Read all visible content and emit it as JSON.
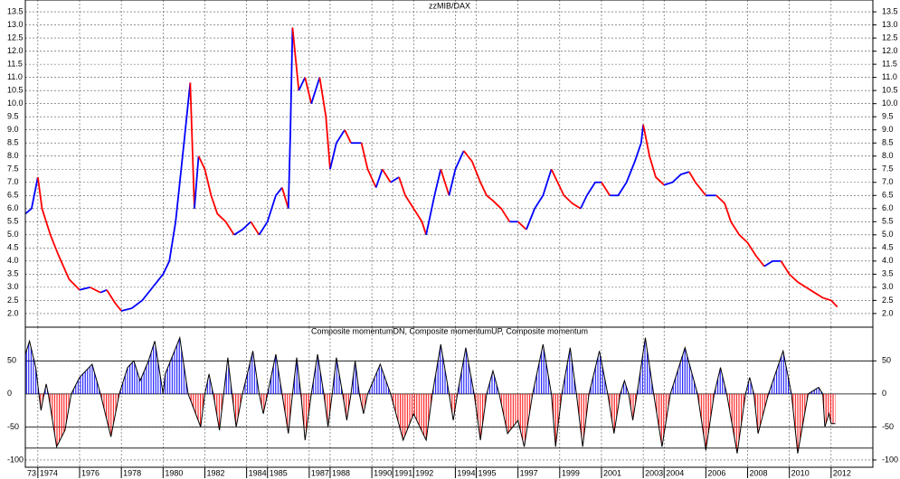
{
  "chart_data": [
    {
      "type": "line",
      "title": "zzMIB/DAX",
      "up_color": "#0000ff",
      "down_color": "#ff0000",
      "xlim": [
        1973.4,
        2014.0
      ],
      "ylim": [
        1.48,
        13.95
      ],
      "yticks": [
        {
          "value": 2,
          "label": "2.0"
        },
        2.5,
        {
          "value": 3,
          "label": "3.0"
        },
        3.5,
        {
          "value": 4,
          "label": "4.0"
        },
        4.5,
        {
          "value": 5,
          "label": "5.0"
        },
        5.5,
        {
          "value": 6,
          "label": "6.0"
        },
        6.5,
        {
          "value": 7,
          "label": "7.0"
        },
        7.5,
        {
          "value": 8,
          "label": "8.0"
        },
        8.5,
        {
          "value": 9,
          "label": "9.0"
        },
        9.5,
        {
          "value": 10,
          "label": "10.0"
        },
        10.5,
        {
          "value": 11,
          "label": "11.0"
        },
        11.5,
        {
          "value": 12,
          "label": "12.0"
        },
        12.5,
        {
          "value": 13,
          "label": "13.0"
        },
        13.5
      ],
      "x": [
        1973.4,
        1973.7,
        1974.0,
        1974.2,
        1974.6,
        1975.0,
        1975.5,
        1976.0,
        1976.5,
        1977.0,
        1977.3,
        1977.7,
        1978.0,
        1978.5,
        1979.0,
        1979.5,
        1980.0,
        1980.3,
        1980.6,
        1980.8,
        1981.0,
        1981.3,
        1981.5,
        1981.7,
        1982.0,
        1982.3,
        1982.6,
        1983.0,
        1983.4,
        1983.8,
        1984.2,
        1984.6,
        1985.0,
        1985.4,
        1985.7,
        1986.0,
        1986.1,
        1986.2,
        1986.5,
        1986.8,
        1987.1,
        1987.5,
        1987.8,
        1988.0,
        1988.3,
        1988.7,
        1989.0,
        1989.5,
        1989.8,
        1990.2,
        1990.5,
        1990.9,
        1991.3,
        1991.6,
        1992.0,
        1992.4,
        1992.6,
        1993.0,
        1993.3,
        1993.7,
        1994.0,
        1994.4,
        1994.8,
        1995.2,
        1995.5,
        1995.8,
        1996.2,
        1996.6,
        1997.0,
        1997.4,
        1997.8,
        1998.2,
        1998.6,
        1998.9,
        1999.2,
        1999.6,
        2000.0,
        2000.3,
        2000.7,
        2001.0,
        2001.4,
        2001.8,
        2002.2,
        2002.6,
        2002.9,
        2003.0,
        2003.3,
        2003.6,
        2004.0,
        2004.4,
        2004.8,
        2005.2,
        2005.5,
        2006.0,
        2006.5,
        2006.9,
        2007.2,
        2007.6,
        2008.0,
        2008.4,
        2008.8,
        2009.2,
        2009.6,
        2010.0,
        2010.4,
        2010.8,
        2011.2,
        2011.6,
        2012.0,
        2012.3
      ],
      "values": [
        5.8,
        6.0,
        7.2,
        6.0,
        5.0,
        4.2,
        3.3,
        2.9,
        3.0,
        2.8,
        2.9,
        2.4,
        2.1,
        2.2,
        2.5,
        3.0,
        3.5,
        4.0,
        5.5,
        7.0,
        8.5,
        10.8,
        6.0,
        8.0,
        7.5,
        6.5,
        5.8,
        5.5,
        5.0,
        5.2,
        5.5,
        5.0,
        5.5,
        6.5,
        6.8,
        6.0,
        9.0,
        12.9,
        10.5,
        11.0,
        10.0,
        11.0,
        9.5,
        7.5,
        8.5,
        9.0,
        8.5,
        8.5,
        7.5,
        6.8,
        7.5,
        7.0,
        7.2,
        6.5,
        6.0,
        5.5,
        5.0,
        6.5,
        7.5,
        6.5,
        7.5,
        8.2,
        7.8,
        7.0,
        6.5,
        6.3,
        6.0,
        5.5,
        5.5,
        5.2,
        6.0,
        6.5,
        7.5,
        7.0,
        6.5,
        6.2,
        6.0,
        6.5,
        7.0,
        7.0,
        6.5,
        6.5,
        7.0,
        7.8,
        8.5,
        9.2,
        8.0,
        7.2,
        6.9,
        7.0,
        7.3,
        7.4,
        7.0,
        6.5,
        6.5,
        6.2,
        5.5,
        5.0,
        4.7,
        4.2,
        3.8,
        4.0,
        4.0,
        3.5,
        3.2,
        3.0,
        2.8,
        2.6,
        2.5,
        2.25
      ]
    },
    {
      "type": "area",
      "title": "Composite momentumDN, Composite momentumUP, Composite momentum",
      "pos_color": "#0000ff",
      "neg_color": "#ff0000",
      "line_color": "#000000",
      "xlim": [
        1973.4,
        2014.0
      ],
      "ylim": [
        -111,
        101
      ],
      "yticks": [
        50,
        0,
        -50,
        -100
      ],
      "levels": [
        50,
        0,
        -50,
        -82
      ],
      "xticks": [
        {
          "value": 1973,
          "label": "73"
        },
        1974,
        1976,
        1978,
        1980,
        1982,
        1984,
        1985,
        1987,
        1988,
        1990,
        1991,
        1992,
        1994,
        1995,
        1997,
        1999,
        2001,
        2003,
        2004,
        2006,
        2008,
        2010,
        2012
      ],
      "x": [
        1973.4,
        1973.6,
        1973.9,
        1974.05,
        1974.15,
        1974.3,
        1974.4,
        1974.5,
        1974.9,
        1975.3,
        1975.6,
        1976.0,
        1976.6,
        1977.0,
        1977.5,
        1977.9,
        1978.3,
        1978.6,
        1978.9,
        1979.1,
        1979.3,
        1979.6,
        1980.0,
        1980.1,
        1980.8,
        1981.2,
        1981.8,
        1982.0,
        1982.2,
        1982.4,
        1982.7,
        1982.9,
        1983.1,
        1983.3,
        1983.5,
        1983.8,
        1984.3,
        1984.6,
        1984.8,
        1985.0,
        1985.4,
        1985.7,
        1986.0,
        1986.2,
        1986.4,
        1986.6,
        1986.8,
        1987.1,
        1987.4,
        1987.7,
        1987.9,
        1988.1,
        1988.3,
        1988.6,
        1988.8,
        1989.0,
        1989.2,
        1989.4,
        1989.6,
        1989.8,
        1990.4,
        1990.9,
        1991.5,
        1992.0,
        1992.6,
        1992.9,
        1993.3,
        1993.7,
        1993.9,
        1994.1,
        1994.5,
        1994.9,
        1995.2,
        1995.5,
        1995.8,
        1996.1,
        1996.5,
        1997.0,
        1997.3,
        1997.7,
        1998.2,
        1998.6,
        1998.8,
        1999.1,
        1999.5,
        1999.8,
        2000.1,
        2000.4,
        2000.9,
        2001.3,
        2001.6,
        2001.9,
        2002.1,
        2002.3,
        2002.5,
        2002.7,
        2003.1,
        2003.5,
        2003.9,
        2004.3,
        2005.0,
        2005.6,
        2006.0,
        2006.4,
        2006.7,
        2007.0,
        2007.5,
        2007.9,
        2008.1,
        2008.3,
        2008.5,
        2009.0,
        2009.7,
        2010.1,
        2010.4,
        2010.9,
        2011.4,
        2011.6,
        2011.7,
        2011.9,
        2012.0,
        2012.2
      ],
      "values": [
        60,
        80,
        40,
        0,
        -25,
        0,
        15,
        0,
        -80,
        -55,
        0,
        25,
        45,
        0,
        -65,
        0,
        40,
        50,
        20,
        35,
        50,
        80,
        0,
        30,
        85,
        0,
        -50,
        0,
        30,
        0,
        -55,
        0,
        55,
        0,
        -50,
        0,
        65,
        0,
        -30,
        0,
        60,
        0,
        -60,
        0,
        55,
        0,
        -70,
        0,
        60,
        0,
        -50,
        0,
        55,
        0,
        -40,
        0,
        50,
        0,
        -30,
        0,
        45,
        0,
        -70,
        -30,
        -70,
        0,
        75,
        0,
        -40,
        0,
        70,
        0,
        -70,
        0,
        35,
        0,
        -60,
        -40,
        -80,
        0,
        75,
        0,
        -80,
        0,
        70,
        0,
        -80,
        0,
        65,
        0,
        -60,
        0,
        20,
        0,
        -40,
        0,
        85,
        0,
        -80,
        0,
        70,
        0,
        -85,
        0,
        40,
        0,
        -90,
        0,
        25,
        0,
        -60,
        0,
        65,
        0,
        -90,
        0,
        10,
        0,
        -50,
        -30,
        -45,
        -45
      ]
    }
  ]
}
